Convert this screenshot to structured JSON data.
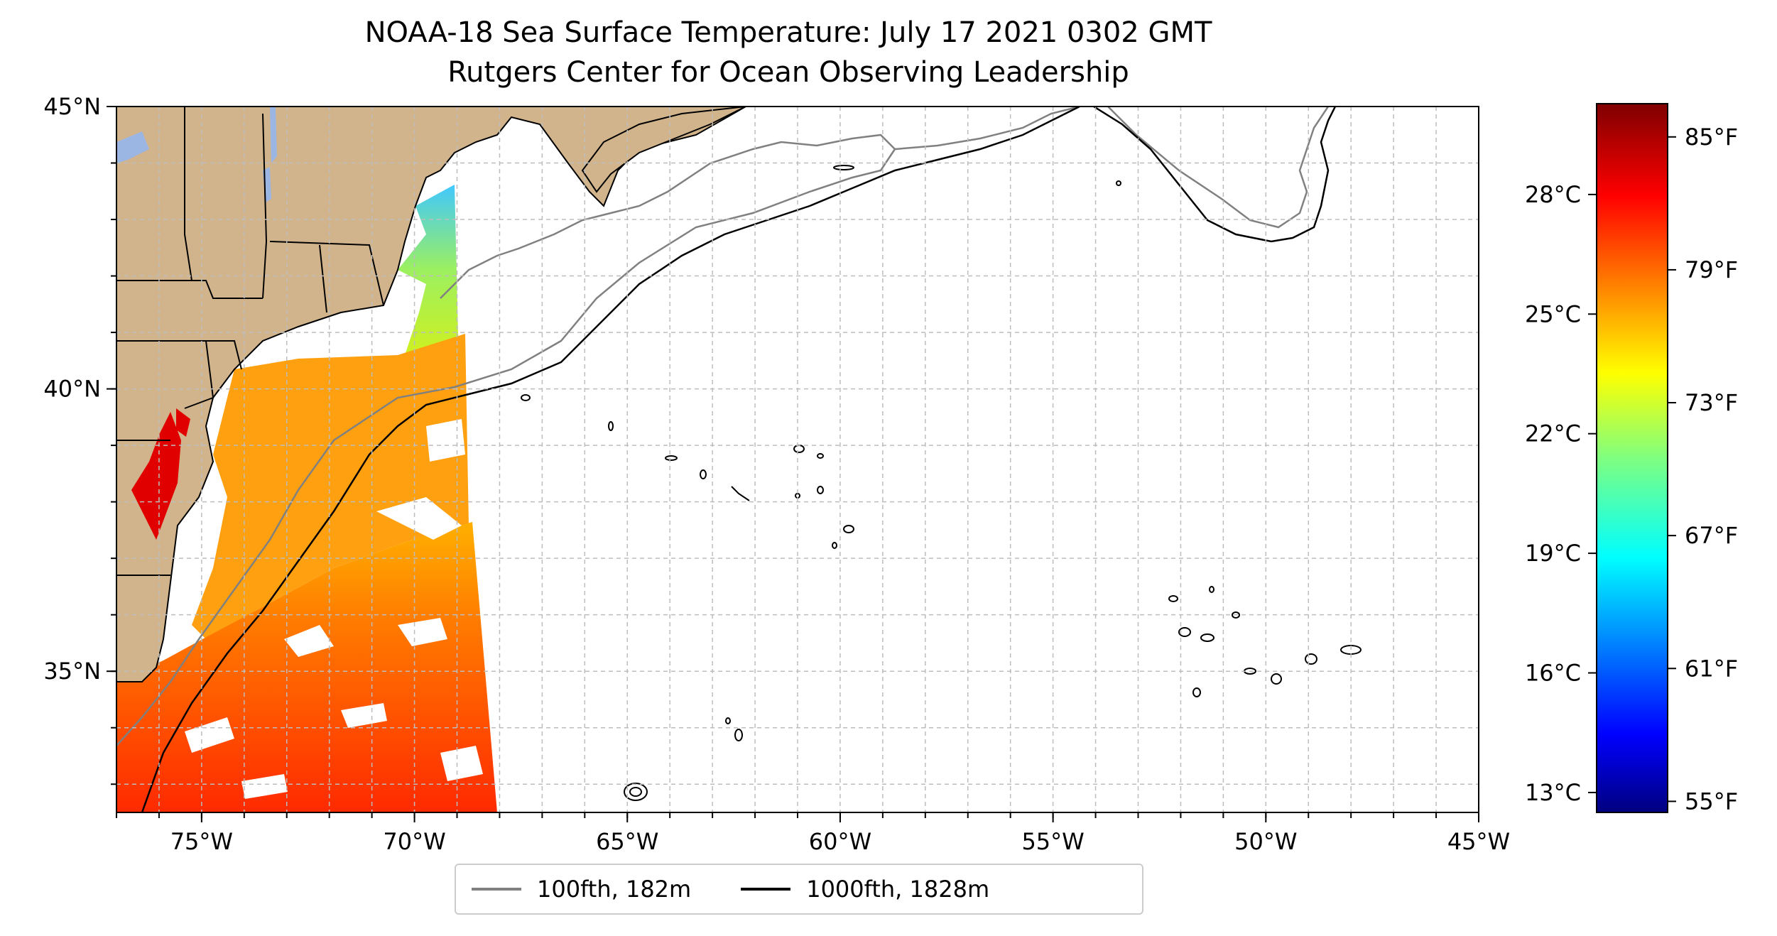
{
  "title": {
    "line1": "NOAA-18 Sea Surface Temperature: July 17 2021 0302 GMT",
    "line2": "Rutgers Center for Ocean Observing Leadership"
  },
  "map": {
    "lon_range": [
      -77,
      -45
    ],
    "lat_range": [
      32.5,
      45
    ],
    "lon_ticks": [
      {
        "value": -75,
        "label": "75°W"
      },
      {
        "value": -70,
        "label": "70°W"
      },
      {
        "value": -65,
        "label": "65°W"
      },
      {
        "value": -60,
        "label": "60°W"
      },
      {
        "value": -55,
        "label": "55°W"
      },
      {
        "value": -50,
        "label": "50°W"
      },
      {
        "value": -45,
        "label": "45°W"
      }
    ],
    "lat_ticks": [
      {
        "value": 35,
        "label": "35°N"
      },
      {
        "value": 40,
        "label": "40°N"
      },
      {
        "value": 45,
        "label": "45°N"
      }
    ],
    "grid": "dashed, 1° spacing",
    "colors": {
      "land": "#d2b48c",
      "lakes": "#9cb6e4",
      "isobath_100": "#808080",
      "isobath_1000": "#000000"
    }
  },
  "colorbar": {
    "colormap": "jet",
    "celsius_ticks": [
      {
        "value": 13,
        "label": "13°C"
      },
      {
        "value": 16,
        "label": "16°C"
      },
      {
        "value": 19,
        "label": "19°C"
      },
      {
        "value": 22,
        "label": "22°C"
      },
      {
        "value": 25,
        "label": "25°C"
      },
      {
        "value": 28,
        "label": "28°C"
      }
    ],
    "fahrenheit_ticks": [
      {
        "value": 55,
        "label": "55°F"
      },
      {
        "value": 61,
        "label": "61°F"
      },
      {
        "value": 67,
        "label": "67°F"
      },
      {
        "value": 73,
        "label": "73°F"
      },
      {
        "value": 79,
        "label": "79°F"
      },
      {
        "value": 85,
        "label": "85°F"
      }
    ],
    "range_f": [
      54.5,
      86.5
    ]
  },
  "legend": {
    "items": [
      {
        "label": "100fth, 182m",
        "color": "#808080"
      },
      {
        "label": "1000fth, 1828m",
        "color": "#000000"
      }
    ]
  }
}
